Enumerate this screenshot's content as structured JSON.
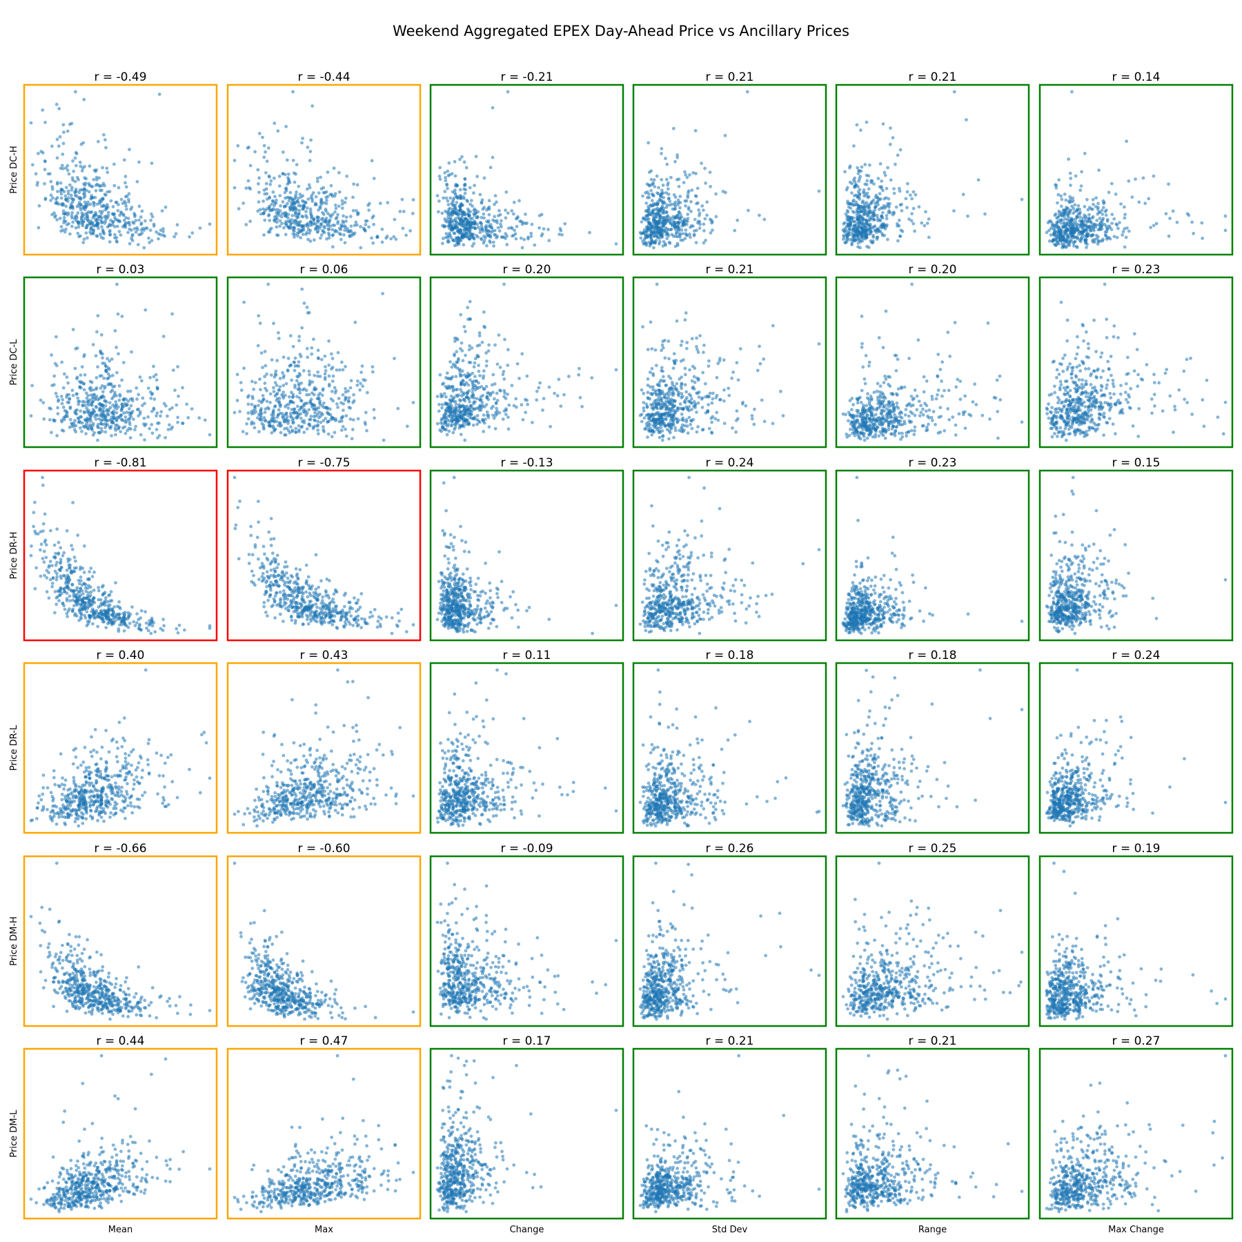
{
  "title": "Weekend Aggregated EPEX Day-Ahead Price vs Ancillary Prices",
  "colors": {
    "point": "#1f77b4",
    "strong_frame": "#ff0000",
    "moderate_frame": "#ffa500",
    "weak_frame": "#008000"
  },
  "chart_data": {
    "type": "scatter",
    "x_variables": [
      "Mean",
      "Max",
      "Change",
      "Std Dev",
      "Range",
      "Max Change"
    ],
    "y_variables": [
      "Price DC-H",
      "Price DC-L",
      "Price DR-H",
      "Price DR-L",
      "Price DM-H",
      "Price DM-L"
    ],
    "ticks_visible": false,
    "correlations": [
      {
        "row_label": "Price DC-H",
        "r": [
          -0.49,
          -0.44,
          -0.21,
          0.21,
          0.21,
          0.14
        ],
        "r_labels": [
          "r = -0.49",
          "r = -0.44",
          "r = -0.21",
          "r = 0.21",
          "r = 0.21",
          "r = 0.14"
        ],
        "frame": [
          "moderate",
          "moderate",
          "weak",
          "weak",
          "weak",
          "weak"
        ]
      },
      {
        "row_label": "Price DC-L",
        "r": [
          0.03,
          0.06,
          0.2,
          0.21,
          0.2,
          0.23
        ],
        "r_labels": [
          "r = 0.03",
          "r = 0.06",
          "r = 0.20",
          "r = 0.21",
          "r = 0.20",
          "r = 0.23"
        ],
        "frame": [
          "weak",
          "weak",
          "weak",
          "weak",
          "weak",
          "weak"
        ]
      },
      {
        "row_label": "Price DR-H",
        "r": [
          -0.81,
          -0.75,
          -0.13,
          0.24,
          0.23,
          0.15
        ],
        "r_labels": [
          "r = -0.81",
          "r = -0.75",
          "r = -0.13",
          "r = 0.24",
          "r = 0.23",
          "r = 0.15"
        ],
        "frame": [
          "strong",
          "strong",
          "weak",
          "weak",
          "weak",
          "weak"
        ]
      },
      {
        "row_label": "Price DR-L",
        "r": [
          0.4,
          0.43,
          0.11,
          0.18,
          0.18,
          0.24
        ],
        "r_labels": [
          "r = 0.40",
          "r = 0.43",
          "r = 0.11",
          "r = 0.18",
          "r = 0.18",
          "r = 0.24"
        ],
        "frame": [
          "moderate",
          "moderate",
          "weak",
          "weak",
          "weak",
          "weak"
        ]
      },
      {
        "row_label": "Price DM-H",
        "r": [
          -0.66,
          -0.6,
          -0.09,
          0.26,
          0.25,
          0.19
        ],
        "r_labels": [
          "r = -0.66",
          "r = -0.60",
          "r = -0.09",
          "r = 0.26",
          "r = 0.25",
          "r = 0.19"
        ],
        "frame": [
          "moderate",
          "moderate",
          "weak",
          "weak",
          "weak",
          "weak"
        ]
      },
      {
        "row_label": "Price DM-L",
        "r": [
          0.44,
          0.47,
          0.17,
          0.21,
          0.21,
          0.27
        ],
        "r_labels": [
          "r = 0.44",
          "r = 0.47",
          "r = 0.17",
          "r = 0.21",
          "r = 0.21",
          "r = 0.27"
        ],
        "frame": [
          "moderate",
          "moderate",
          "weak",
          "weak",
          "weak",
          "weak"
        ]
      }
    ],
    "points_per_panel": 500,
    "marker_alpha": 0.55
  }
}
